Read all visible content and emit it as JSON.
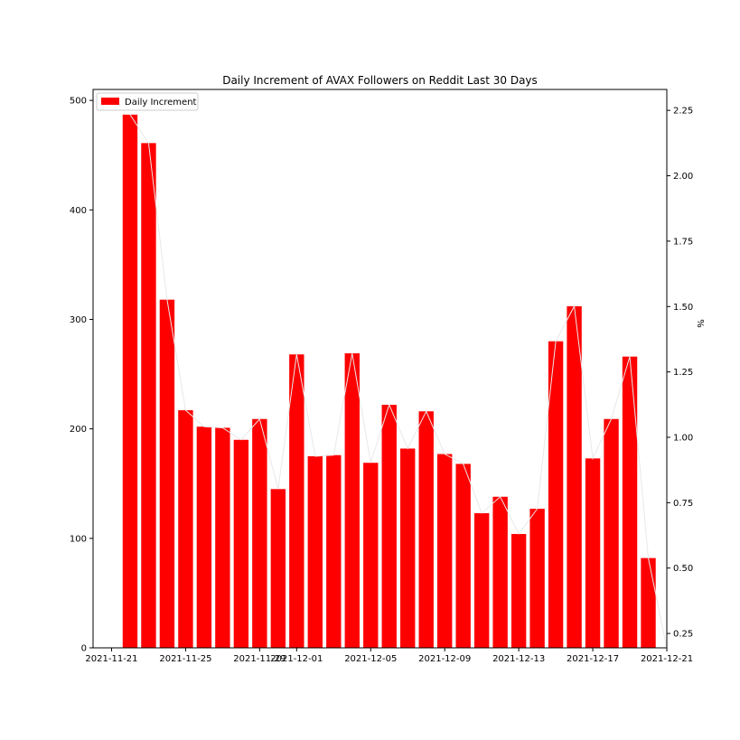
{
  "chart_data": {
    "type": "bar",
    "title": "Daily Increment of AVAX Followers on Reddit Last 30 Days",
    "xlabel": "",
    "ylabel": "",
    "y2label": "%",
    "legend": {
      "entries": [
        "Daily Increment"
      ],
      "placement": "top-left"
    },
    "grid": false,
    "colors": {
      "bars": "#ff0000",
      "line": "#e8e8e8"
    },
    "xlim": [
      "2021-11-20",
      "2021-12-21"
    ],
    "ylim": [
      0,
      510
    ],
    "y2lim": [
      0.195,
      2.33
    ],
    "x_ticks": [
      "2021-11-21",
      "2021-11-25",
      "2021-11-29",
      "2021-12-01",
      "2021-12-05",
      "2021-12-09",
      "2021-12-13",
      "2021-12-17",
      "2021-12-21"
    ],
    "y_ticks": [
      "0",
      "100",
      "200",
      "300",
      "400",
      "500"
    ],
    "y2_ticks": [
      "0.25",
      "0.50",
      "0.75",
      "1.00",
      "1.25",
      "1.50",
      "1.75",
      "2.00",
      "2.25"
    ],
    "series": [
      {
        "name": "Daily Increment",
        "x": [
          "2021-11-22",
          "2021-11-23",
          "2021-11-24",
          "2021-11-25",
          "2021-11-26",
          "2021-11-27",
          "2021-11-28",
          "2021-11-29",
          "2021-11-30",
          "2021-12-01",
          "2021-12-02",
          "2021-12-03",
          "2021-12-04",
          "2021-12-05",
          "2021-12-06",
          "2021-12-07",
          "2021-12-08",
          "2021-12-09",
          "2021-12-10",
          "2021-12-11",
          "2021-12-12",
          "2021-12-13",
          "2021-12-14",
          "2021-12-15",
          "2021-12-16",
          "2021-12-17",
          "2021-12-18",
          "2021-12-19",
          "2021-12-20",
          "2021-12-21"
        ],
        "values": [
          487,
          461,
          318,
          217,
          202,
          201,
          190,
          209,
          145,
          268,
          175,
          176,
          269,
          169,
          222,
          182,
          216,
          177,
          168,
          123,
          138,
          104,
          127,
          280,
          312,
          173,
          209,
          266,
          82,
          0
        ]
      }
    ]
  }
}
